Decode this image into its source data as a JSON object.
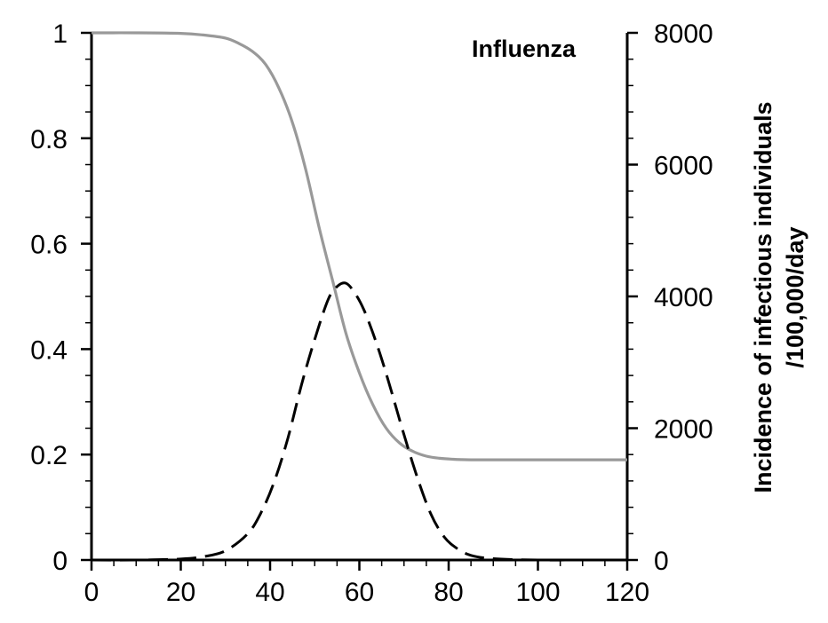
{
  "chart_data": {
    "type": "line",
    "title": "Influenza",
    "xlabel": "",
    "ylabel_left": "",
    "ylabel_right": [
      "Incidence of infectious individuals",
      "/100,000/day"
    ],
    "xlim": [
      0,
      120
    ],
    "ylim_left": [
      0,
      1
    ],
    "ylim_right": [
      0,
      8000
    ],
    "x_ticks": [
      0,
      20,
      40,
      60,
      80,
      100,
      120
    ],
    "x_tick_labels": [
      "0",
      "20",
      "40",
      "60",
      "80",
      "100",
      "120"
    ],
    "y_left_ticks": [
      0,
      0.2,
      0.4,
      0.6,
      0.8,
      1
    ],
    "y_left_tick_labels": [
      "0",
      "0.2",
      "0.4",
      "0.6",
      "0.8",
      "1"
    ],
    "y_right_ticks": [
      0,
      2000,
      4000,
      6000,
      8000
    ],
    "y_right_tick_labels": [
      "0",
      "2000",
      "4000",
      "6000",
      "8000"
    ],
    "grid": false,
    "series": [
      {
        "axis": "left",
        "style": "solid",
        "color": "#999999",
        "x": [
          0,
          10,
          20,
          25,
          30,
          33,
          36,
          39,
          42,
          45,
          48,
          51,
          54,
          57,
          60,
          63,
          66,
          69,
          72,
          75,
          78,
          81,
          85,
          90,
          100,
          110,
          120
        ],
        "y": [
          1.0,
          1.0,
          0.999,
          0.996,
          0.99,
          0.98,
          0.965,
          0.94,
          0.895,
          0.83,
          0.74,
          0.63,
          0.53,
          0.43,
          0.355,
          0.295,
          0.25,
          0.222,
          0.206,
          0.197,
          0.193,
          0.191,
          0.19,
          0.19,
          0.19,
          0.19,
          0.19
        ]
      },
      {
        "axis": "right",
        "style": "dashed",
        "color": "#000000",
        "x": [
          0,
          10,
          20,
          25,
          30,
          35,
          38,
          41,
          44,
          47,
          50,
          53,
          55,
          57,
          59,
          61,
          63,
          65,
          67,
          70,
          73,
          76,
          79,
          82,
          85,
          90,
          100,
          110,
          120
        ],
        "y": [
          0,
          0,
          15,
          50,
          140,
          400,
          720,
          1200,
          1850,
          2650,
          3350,
          3950,
          4150,
          4200,
          4050,
          3800,
          3450,
          3050,
          2600,
          1900,
          1250,
          700,
          350,
          170,
          70,
          20,
          0,
          0,
          0
        ]
      }
    ]
  }
}
